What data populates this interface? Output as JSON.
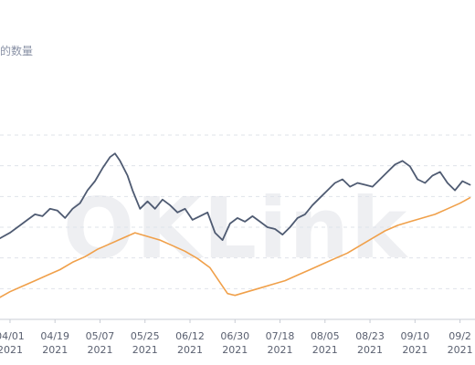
{
  "chart_data": {
    "type": "line",
    "title": "的数量",
    "watermark": "OKLink",
    "x_ticks": [
      {
        "date": "04/01",
        "year": "2021"
      },
      {
        "date": "04/19",
        "year": "2021"
      },
      {
        "date": "05/07",
        "year": "2021"
      },
      {
        "date": "05/25",
        "year": "2021"
      },
      {
        "date": "06/12",
        "year": "2021"
      },
      {
        "date": "06/30",
        "year": "2021"
      },
      {
        "date": "07/18",
        "year": "2021"
      },
      {
        "date": "08/05",
        "year": "2021"
      },
      {
        "date": "08/23",
        "year": "2021"
      },
      {
        "date": "09/10",
        "year": "2021"
      },
      {
        "date": "09/2",
        "year": "2021"
      }
    ],
    "x_range": [
      "2021-03-28",
      "2021-10-04"
    ],
    "y_axis_labels_visible": false,
    "grid": true,
    "series": [
      {
        "color": "#4f5b72",
        "points": [
          [
            "2021-03-28",
            0.44
          ],
          [
            "2021-04-01",
            0.47
          ],
          [
            "2021-04-05",
            0.51
          ],
          [
            "2021-04-08",
            0.54
          ],
          [
            "2021-04-11",
            0.57
          ],
          [
            "2021-04-14",
            0.56
          ],
          [
            "2021-04-17",
            0.6
          ],
          [
            "2021-04-20",
            0.59
          ],
          [
            "2021-04-23",
            0.55
          ],
          [
            "2021-04-26",
            0.6
          ],
          [
            "2021-04-29",
            0.63
          ],
          [
            "2021-05-02",
            0.7
          ],
          [
            "2021-05-05",
            0.75
          ],
          [
            "2021-05-08",
            0.82
          ],
          [
            "2021-05-11",
            0.88
          ],
          [
            "2021-05-13",
            0.9
          ],
          [
            "2021-05-15",
            0.86
          ],
          [
            "2021-05-18",
            0.78
          ],
          [
            "2021-05-20",
            0.7
          ],
          [
            "2021-05-23",
            0.6
          ],
          [
            "2021-05-26",
            0.64
          ],
          [
            "2021-05-29",
            0.6
          ],
          [
            "2021-06-01",
            0.65
          ],
          [
            "2021-06-04",
            0.62
          ],
          [
            "2021-06-07",
            0.58
          ],
          [
            "2021-06-10",
            0.6
          ],
          [
            "2021-06-13",
            0.54
          ],
          [
            "2021-06-16",
            0.56
          ],
          [
            "2021-06-19",
            0.58
          ],
          [
            "2021-06-22",
            0.47
          ],
          [
            "2021-06-25",
            0.43
          ],
          [
            "2021-06-28",
            0.52
          ],
          [
            "2021-07-01",
            0.55
          ],
          [
            "2021-07-04",
            0.53
          ],
          [
            "2021-07-07",
            0.56
          ],
          [
            "2021-07-10",
            0.53
          ],
          [
            "2021-07-13",
            0.5
          ],
          [
            "2021-07-16",
            0.49
          ],
          [
            "2021-07-19",
            0.46
          ],
          [
            "2021-07-22",
            0.5
          ],
          [
            "2021-07-25",
            0.55
          ],
          [
            "2021-07-28",
            0.57
          ],
          [
            "2021-07-31",
            0.62
          ],
          [
            "2021-08-03",
            0.66
          ],
          [
            "2021-08-06",
            0.7
          ],
          [
            "2021-08-09",
            0.74
          ],
          [
            "2021-08-12",
            0.76
          ],
          [
            "2021-08-15",
            0.72
          ],
          [
            "2021-08-18",
            0.74
          ],
          [
            "2021-08-21",
            0.73
          ],
          [
            "2021-08-24",
            0.72
          ],
          [
            "2021-08-27",
            0.76
          ],
          [
            "2021-08-30",
            0.8
          ],
          [
            "2021-09-02",
            0.84
          ],
          [
            "2021-09-05",
            0.86
          ],
          [
            "2021-09-08",
            0.83
          ],
          [
            "2021-09-11",
            0.76
          ],
          [
            "2021-09-14",
            0.74
          ],
          [
            "2021-09-17",
            0.78
          ],
          [
            "2021-09-20",
            0.8
          ],
          [
            "2021-09-23",
            0.74
          ],
          [
            "2021-09-26",
            0.7
          ],
          [
            "2021-09-29",
            0.75
          ],
          [
            "2021-10-02",
            0.73
          ]
        ]
      },
      {
        "color": "#f0a04a",
        "points": [
          [
            "2021-03-28",
            0.12
          ],
          [
            "2021-04-01",
            0.15
          ],
          [
            "2021-04-06",
            0.18
          ],
          [
            "2021-04-11",
            0.21
          ],
          [
            "2021-04-16",
            0.24
          ],
          [
            "2021-04-21",
            0.27
          ],
          [
            "2021-04-26",
            0.31
          ],
          [
            "2021-05-01",
            0.34
          ],
          [
            "2021-05-06",
            0.38
          ],
          [
            "2021-05-11",
            0.41
          ],
          [
            "2021-05-16",
            0.44
          ],
          [
            "2021-05-21",
            0.47
          ],
          [
            "2021-05-26",
            0.45
          ],
          [
            "2021-05-31",
            0.43
          ],
          [
            "2021-06-05",
            0.4
          ],
          [
            "2021-06-10",
            0.37
          ],
          [
            "2021-06-15",
            0.33
          ],
          [
            "2021-06-20",
            0.28
          ],
          [
            "2021-06-24",
            0.2
          ],
          [
            "2021-06-27",
            0.14
          ],
          [
            "2021-06-30",
            0.13
          ],
          [
            "2021-07-05",
            0.15
          ],
          [
            "2021-07-10",
            0.17
          ],
          [
            "2021-07-15",
            0.19
          ],
          [
            "2021-07-20",
            0.21
          ],
          [
            "2021-07-25",
            0.24
          ],
          [
            "2021-07-30",
            0.27
          ],
          [
            "2021-08-04",
            0.3
          ],
          [
            "2021-08-09",
            0.33
          ],
          [
            "2021-08-14",
            0.36
          ],
          [
            "2021-08-19",
            0.4
          ],
          [
            "2021-08-24",
            0.44
          ],
          [
            "2021-08-29",
            0.48
          ],
          [
            "2021-09-03",
            0.51
          ],
          [
            "2021-09-08",
            0.53
          ],
          [
            "2021-09-13",
            0.55
          ],
          [
            "2021-09-18",
            0.57
          ],
          [
            "2021-09-23",
            0.6
          ],
          [
            "2021-09-28",
            0.63
          ],
          [
            "2021-10-02",
            0.66
          ]
        ]
      }
    ]
  }
}
